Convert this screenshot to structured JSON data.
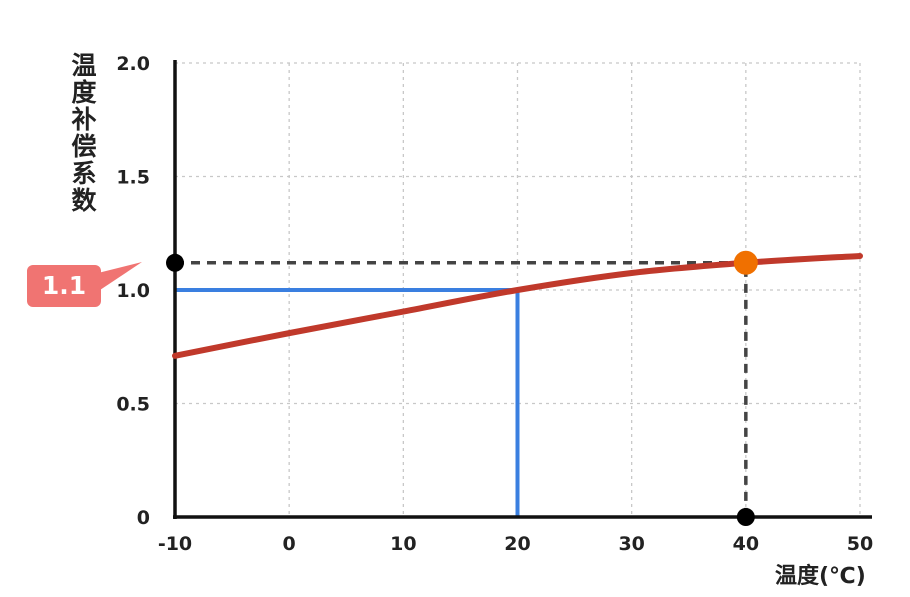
{
  "chart_data": {
    "type": "line",
    "xlabel": "温度(℃)",
    "ylabel": "温度补偿系数",
    "xlim": [
      -10,
      50
    ],
    "ylim": [
      0,
      2.0
    ],
    "x_ticks": [
      "-10",
      "0",
      "10",
      "20",
      "30",
      "40",
      "50"
    ],
    "y_ticks": [
      "0",
      "0.5",
      "1.0",
      "1.5",
      "2.0"
    ],
    "grid": true,
    "series": [
      {
        "color": "#c0392b",
        "x": [
          -10,
          0,
          10,
          20,
          30,
          40,
          50
        ],
        "y": [
          0.71,
          0.81,
          0.905,
          1.0,
          1.075,
          1.12,
          1.15
        ]
      }
    ],
    "guides": [
      {
        "color": "#3a7fe0",
        "style": "solid",
        "x": 20,
        "y": 1.0
      },
      {
        "color": "#444444",
        "style": "dashed",
        "x": 40,
        "y": 1.12
      }
    ],
    "highlight_point": {
      "x": 40,
      "y": 1.12,
      "color": "#f07000"
    },
    "axis_markers": [
      {
        "x": -10,
        "y": 1.12
      },
      {
        "x": 40,
        "y": 0
      }
    ],
    "annotation": {
      "text": "1.1",
      "color": "#f07472"
    }
  }
}
